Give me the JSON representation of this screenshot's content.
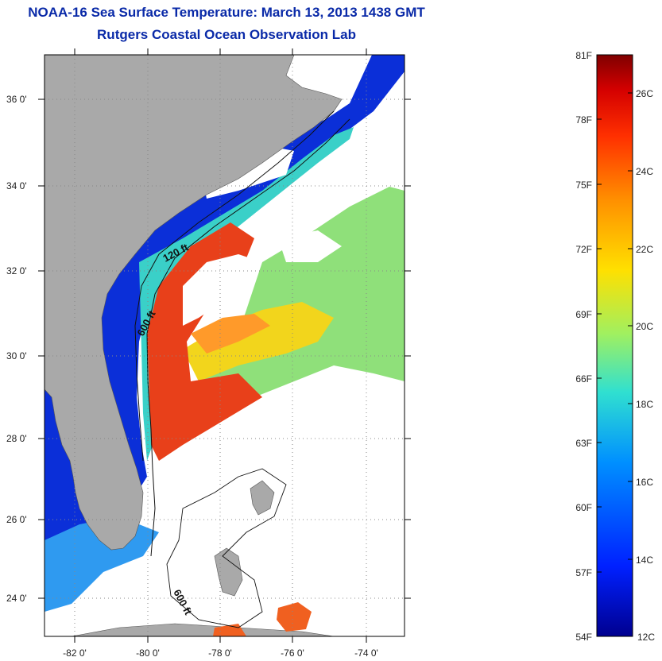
{
  "title": "NOAA-16 Sea Surface Temperature:  March 13, 2013 1438 GMT",
  "subtitle": "Rutgers Coastal Ocean Observation Lab",
  "lat_labels": [
    "36 0'",
    "34 0'",
    "32 0'",
    "30 0'",
    "28 0'",
    "26 0'",
    "24 0'"
  ],
  "lon_labels": [
    "-82 0'",
    "-80 0'",
    "-78 0'",
    "-76 0'",
    "-74 0'"
  ],
  "contour_labels": [
    "120 ft",
    "600 ft",
    "600 ft"
  ],
  "colorbar": {
    "f_labels": [
      "81F",
      "78F",
      "75F",
      "72F",
      "69F",
      "66F",
      "63F",
      "60F",
      "57F",
      "54F"
    ],
    "c_labels": [
      "26C",
      "24C",
      "22C",
      "20C",
      "18C",
      "16C",
      "14C",
      "12C"
    ],
    "colors": [
      "#7f0000",
      "#d40000",
      "#ff3000",
      "#ff9000",
      "#ffe000",
      "#a0f060",
      "#30e0d0",
      "#0090ff",
      "#0020ff",
      "#00008f"
    ]
  },
  "colors": {
    "land": "#a9a9a9",
    "title": "#0a2aa8",
    "nearshore_cold": "#0b2fd8",
    "gulf_stream_warm": "#e8401a"
  }
}
